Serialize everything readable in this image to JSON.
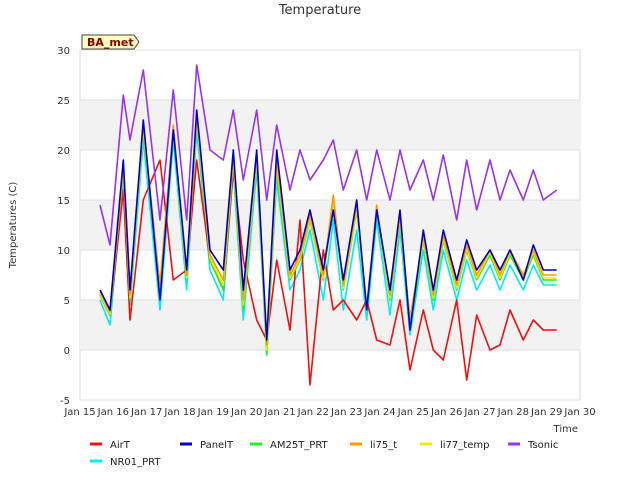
{
  "chart_data": {
    "type": "line",
    "title": "Temperature",
    "xlabel": "Time",
    "ylabel": "Temperatures (C)",
    "badge": "BA_met",
    "ylim": [
      -5,
      30
    ],
    "xlim": [
      0,
      15
    ],
    "yticks": [
      -5,
      0,
      5,
      10,
      15,
      20,
      25,
      30
    ],
    "xtick_labels": [
      "Jan 15",
      "Jan 16",
      "Jan 17",
      "Jan 18",
      "Jan 19",
      "Jan 20",
      "Jan 21",
      "Jan 22",
      "Jan 23",
      "Jan 24",
      "Jan 25",
      "Jan 26",
      "Jan 27",
      "Jan 28",
      "Jan 29",
      "Jan 30"
    ],
    "x_days": [
      0.6,
      0.9,
      1.3,
      1.5,
      1.9,
      2.4,
      2.8,
      3.2,
      3.5,
      3.9,
      4.3,
      4.6,
      4.9,
      5.3,
      5.6,
      5.9,
      6.3,
      6.6,
      6.9,
      7.3,
      7.6,
      7.9,
      8.3,
      8.6,
      8.9,
      9.3,
      9.6,
      9.9,
      10.3,
      10.6,
      10.9,
      11.3,
      11.6,
      11.9,
      12.3,
      12.6,
      12.9,
      13.3,
      13.6,
      13.9,
      14.3
    ],
    "grid": true,
    "legend_position": "bottom",
    "series": [
      {
        "name": "AirT",
        "color": "#ee1111",
        "values": [
          5.5,
          3.5,
          16,
          3,
          15,
          19,
          7,
          8,
          19,
          9,
          6,
          18,
          9,
          3,
          1,
          9,
          2,
          13,
          -3.5,
          10,
          4,
          5,
          3,
          5,
          1,
          0.5,
          5,
          -2,
          4,
          0,
          -1,
          5,
          -3,
          3.5,
          0,
          0.5,
          4,
          1,
          3,
          2,
          2
        ]
      },
      {
        "name": "PanelT",
        "color": "#0000cc",
        "values": [
          6,
          4,
          19,
          6,
          23,
          5,
          22,
          8,
          24,
          10,
          8,
          20,
          6,
          20,
          1,
          20,
          8,
          10,
          14,
          8,
          14,
          7,
          15,
          4,
          14,
          6,
          14,
          2,
          12,
          6,
          12,
          7,
          11,
          8,
          10,
          8,
          10,
          7,
          10.5,
          8,
          8
        ]
      },
      {
        "name": "AM25T_PRT",
        "color": "#22ee22",
        "values": [
          5.5,
          3.5,
          18,
          5,
          22,
          6,
          22,
          7,
          23,
          9,
          6,
          19,
          4,
          19,
          -0.5,
          18,
          7,
          9,
          13,
          7,
          15,
          6,
          14,
          4,
          14,
          5,
          13,
          2,
          11,
          5,
          11,
          6,
          10,
          7,
          9.5,
          7,
          9.5,
          7,
          9.5,
          7,
          7
        ]
      },
      {
        "name": "li75_t",
        "color": "#ff9900",
        "values": [
          5.8,
          3.8,
          18.5,
          5.5,
          22.5,
          6.5,
          22.5,
          7.5,
          23.5,
          9.5,
          7,
          19.5,
          5,
          19.5,
          0.5,
          19,
          7.5,
          9.5,
          13.5,
          7.5,
          15.5,
          6.5,
          14.5,
          4.5,
          14.5,
          5.5,
          13.5,
          3,
          11.5,
          5.5,
          11.5,
          6.5,
          10.5,
          7.5,
          10,
          7.5,
          10,
          7.5,
          10,
          7.5,
          7.5
        ]
      },
      {
        "name": "li77_temp",
        "color": "#eeee00",
        "values": [
          5.6,
          3.6,
          18.2,
          5.2,
          22.2,
          6.2,
          22.2,
          7.2,
          23.2,
          9.2,
          6.5,
          19.2,
          4.5,
          19.2,
          0,
          18.5,
          7.2,
          9.2,
          13.2,
          7.2,
          15.2,
          6.2,
          14.2,
          4.2,
          14.2,
          5.2,
          13.2,
          2.5,
          11.2,
          5.2,
          11.2,
          6.2,
          10.2,
          7.2,
          9.8,
          7.2,
          9.8,
          7.2,
          9.8,
          7.2,
          7.2
        ]
      },
      {
        "name": "Tsonic",
        "color": "#9933ee",
        "values": [
          14.5,
          10.5,
          25.5,
          21,
          28,
          13,
          26,
          13,
          28.5,
          20,
          19,
          24,
          17,
          24,
          15,
          22.5,
          16,
          20,
          17,
          19,
          21,
          16,
          20,
          15,
          20,
          15,
          20,
          16,
          19,
          15,
          19.5,
          13,
          19,
          14,
          19,
          15,
          18,
          15,
          18,
          15,
          16
        ]
      },
      {
        "name": "NR01_PRT",
        "color": "#00eeee",
        "values": [
          5,
          2.5,
          17,
          4.5,
          21,
          4,
          21,
          6,
          22,
          8,
          5,
          18,
          3,
          18,
          -0.5,
          17,
          6,
          8,
          12,
          5,
          13,
          4,
          12,
          3,
          13,
          3.5,
          12,
          1.5,
          10,
          4,
          10,
          5,
          9,
          6,
          8.5,
          6,
          8.5,
          6,
          8.5,
          6.5,
          6.5
        ]
      }
    ]
  }
}
